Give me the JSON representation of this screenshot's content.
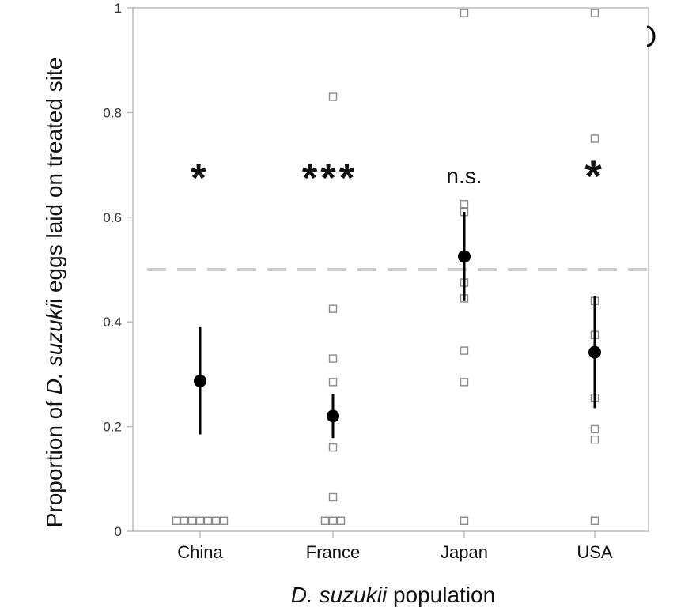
{
  "chart_data": {
    "type": "scatter",
    "xlabel": {
      "italic": "D. suzukii",
      "plain": " population"
    },
    "ylabel": {
      "pre": "Proportion of ",
      "italic": "D. suzuki",
      "post": "i eggs laid on treated site"
    },
    "ylim": [
      0,
      1
    ],
    "y_ticks": [
      {
        "value": 0,
        "label": "0"
      },
      {
        "value": 0.2,
        "label": "0.2"
      },
      {
        "value": 0.4,
        "label": "0.4"
      },
      {
        "value": 0.6,
        "label": "0.6"
      },
      {
        "value": 0.8,
        "label": "0.8"
      },
      {
        "value": 1,
        "label": "1"
      }
    ],
    "reference_line": 0.5,
    "grid": false,
    "categories": [
      "China",
      "France",
      "Japan",
      "USA"
    ],
    "significance": [
      "*",
      "***",
      "n.s.",
      "*"
    ],
    "means": [
      0.287,
      0.22,
      0.525,
      0.342
    ],
    "ci_low": [
      0.185,
      0.178,
      0.44,
      0.235
    ],
    "ci_high": [
      0.39,
      0.262,
      0.61,
      0.45
    ],
    "raw_points": [
      [
        0.02,
        0.02,
        0.02,
        0.02,
        0.02,
        0.02,
        0.02
      ],
      [
        0.02,
        0.02,
        0.02,
        0.065,
        0.16,
        0.285,
        0.33,
        0.425,
        0.83
      ],
      [
        0.02,
        0.285,
        0.345,
        0.445,
        0.475,
        0.61,
        0.625,
        0.99
      ],
      [
        0.02,
        0.175,
        0.195,
        0.255,
        0.375,
        0.44,
        0.75,
        0.99
      ]
    ],
    "colors": {
      "mean": "#000000",
      "raw_point_stroke": "#8a8a8a",
      "reference_line": "#cccccc",
      "axis": "#bbbbbb"
    }
  }
}
